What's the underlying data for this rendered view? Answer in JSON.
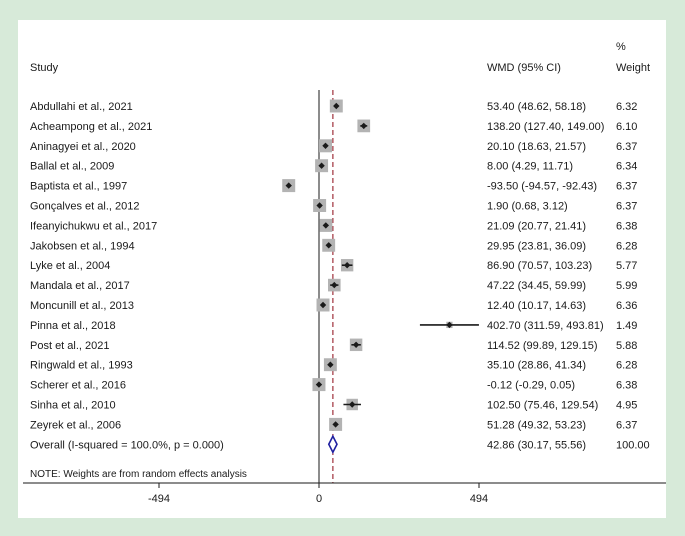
{
  "chart_data": {
    "type": "forest",
    "headers": {
      "study": "Study",
      "effect": "WMD (95% CI)",
      "weight_line1": "%",
      "weight_line2": "Weight"
    },
    "studies": [
      {
        "label": "Abdullahi et al., 2021",
        "est": 53.4,
        "lo": 48.62,
        "hi": 58.18,
        "ci_text": "53.40 (48.62, 58.18)",
        "weight": 6.32,
        "weight_text": "6.32"
      },
      {
        "label": "Acheampong et al., 2021",
        "est": 138.2,
        "lo": 127.4,
        "hi": 149.0,
        "ci_text": "138.20 (127.40, 149.00)",
        "weight": 6.1,
        "weight_text": "6.10"
      },
      {
        "label": "Aninagyei et al., 2020",
        "est": 20.1,
        "lo": 18.63,
        "hi": 21.57,
        "ci_text": "20.10 (18.63, 21.57)",
        "weight": 6.37,
        "weight_text": "6.37"
      },
      {
        "label": "Ballal et al., 2009",
        "est": 8.0,
        "lo": 4.29,
        "hi": 11.71,
        "ci_text": "8.00 (4.29, 11.71)",
        "weight": 6.34,
        "weight_text": "6.34"
      },
      {
        "label": "Baptista et al., 1997",
        "est": -93.5,
        "lo": -94.57,
        "hi": -92.43,
        "ci_text": "-93.50 (-94.57, -92.43)",
        "weight": 6.37,
        "weight_text": "6.37"
      },
      {
        "label": "Gonçalves et al., 2012",
        "est": 1.9,
        "lo": 0.68,
        "hi": 3.12,
        "ci_text": "1.90 (0.68, 3.12)",
        "weight": 6.37,
        "weight_text": "6.37"
      },
      {
        "label": "Ifeanyichukwu et al., 2017",
        "est": 21.09,
        "lo": 20.77,
        "hi": 21.41,
        "ci_text": "21.09 (20.77, 21.41)",
        "weight": 6.38,
        "weight_text": "6.38"
      },
      {
        "label": "Jakobsen et al., 1994",
        "est": 29.95,
        "lo": 23.81,
        "hi": 36.09,
        "ci_text": "29.95 (23.81, 36.09)",
        "weight": 6.28,
        "weight_text": "6.28"
      },
      {
        "label": "Lyke et al., 2004",
        "est": 86.9,
        "lo": 70.57,
        "hi": 103.23,
        "ci_text": "86.90 (70.57, 103.23)",
        "weight": 5.77,
        "weight_text": "5.77"
      },
      {
        "label": "Mandala et al., 2017",
        "est": 47.22,
        "lo": 34.45,
        "hi": 59.99,
        "ci_text": "47.22 (34.45, 59.99)",
        "weight": 5.99,
        "weight_text": "5.99"
      },
      {
        "label": "Moncunill et al., 2013",
        "est": 12.4,
        "lo": 10.17,
        "hi": 14.63,
        "ci_text": "12.40 (10.17, 14.63)",
        "weight": 6.36,
        "weight_text": "6.36"
      },
      {
        "label": "Pinna et al., 2018",
        "est": 402.7,
        "lo": 311.59,
        "hi": 493.81,
        "ci_text": "402.70 (311.59, 493.81)",
        "weight": 1.49,
        "weight_text": "1.49"
      },
      {
        "label": "Post et al., 2021",
        "est": 114.52,
        "lo": 99.89,
        "hi": 129.15,
        "ci_text": "114.52 (99.89, 129.15)",
        "weight": 5.88,
        "weight_text": "5.88"
      },
      {
        "label": "Ringwald et al., 1993",
        "est": 35.1,
        "lo": 28.86,
        "hi": 41.34,
        "ci_text": "35.10 (28.86, 41.34)",
        "weight": 6.28,
        "weight_text": "6.28"
      },
      {
        "label": "Scherer et al., 2016",
        "est": -0.12,
        "lo": -0.29,
        "hi": 0.05,
        "ci_text": "-0.12 (-0.29, 0.05)",
        "weight": 6.38,
        "weight_text": "6.38"
      },
      {
        "label": "Sinha et al., 2010",
        "est": 102.5,
        "lo": 75.46,
        "hi": 129.54,
        "ci_text": "102.50 (75.46, 129.54)",
        "weight": 4.95,
        "weight_text": "4.95"
      },
      {
        "label": "Zeyrek et al., 2006",
        "est": 51.28,
        "lo": 49.32,
        "hi": 53.23,
        "ci_text": "51.28 (49.32, 53.23)",
        "weight": 6.37,
        "weight_text": "6.37"
      }
    ],
    "overall": {
      "label": "Overall  (I-squared = 100.0%, p = 0.000)",
      "est": 42.86,
      "lo": 30.17,
      "hi": 55.56,
      "ci_text": "42.86 (30.17, 55.56)",
      "weight_text": "100.00"
    },
    "note": "NOTE: Weights are from random effects analysis",
    "xlim": [
      -494,
      494
    ],
    "x_ticks": [
      -494,
      0,
      494
    ],
    "x_tick_labels": [
      "-494",
      "0",
      "494"
    ],
    "colors": {
      "background": "#d7ead9",
      "weight_box": "#b3b3b3",
      "point": "#1a1a1a",
      "ci_line": "#1a1a1a",
      "null_line": "#1a1a1a",
      "overall_line": "#a0303c",
      "overall_diamond": "#1f1fa0"
    }
  }
}
